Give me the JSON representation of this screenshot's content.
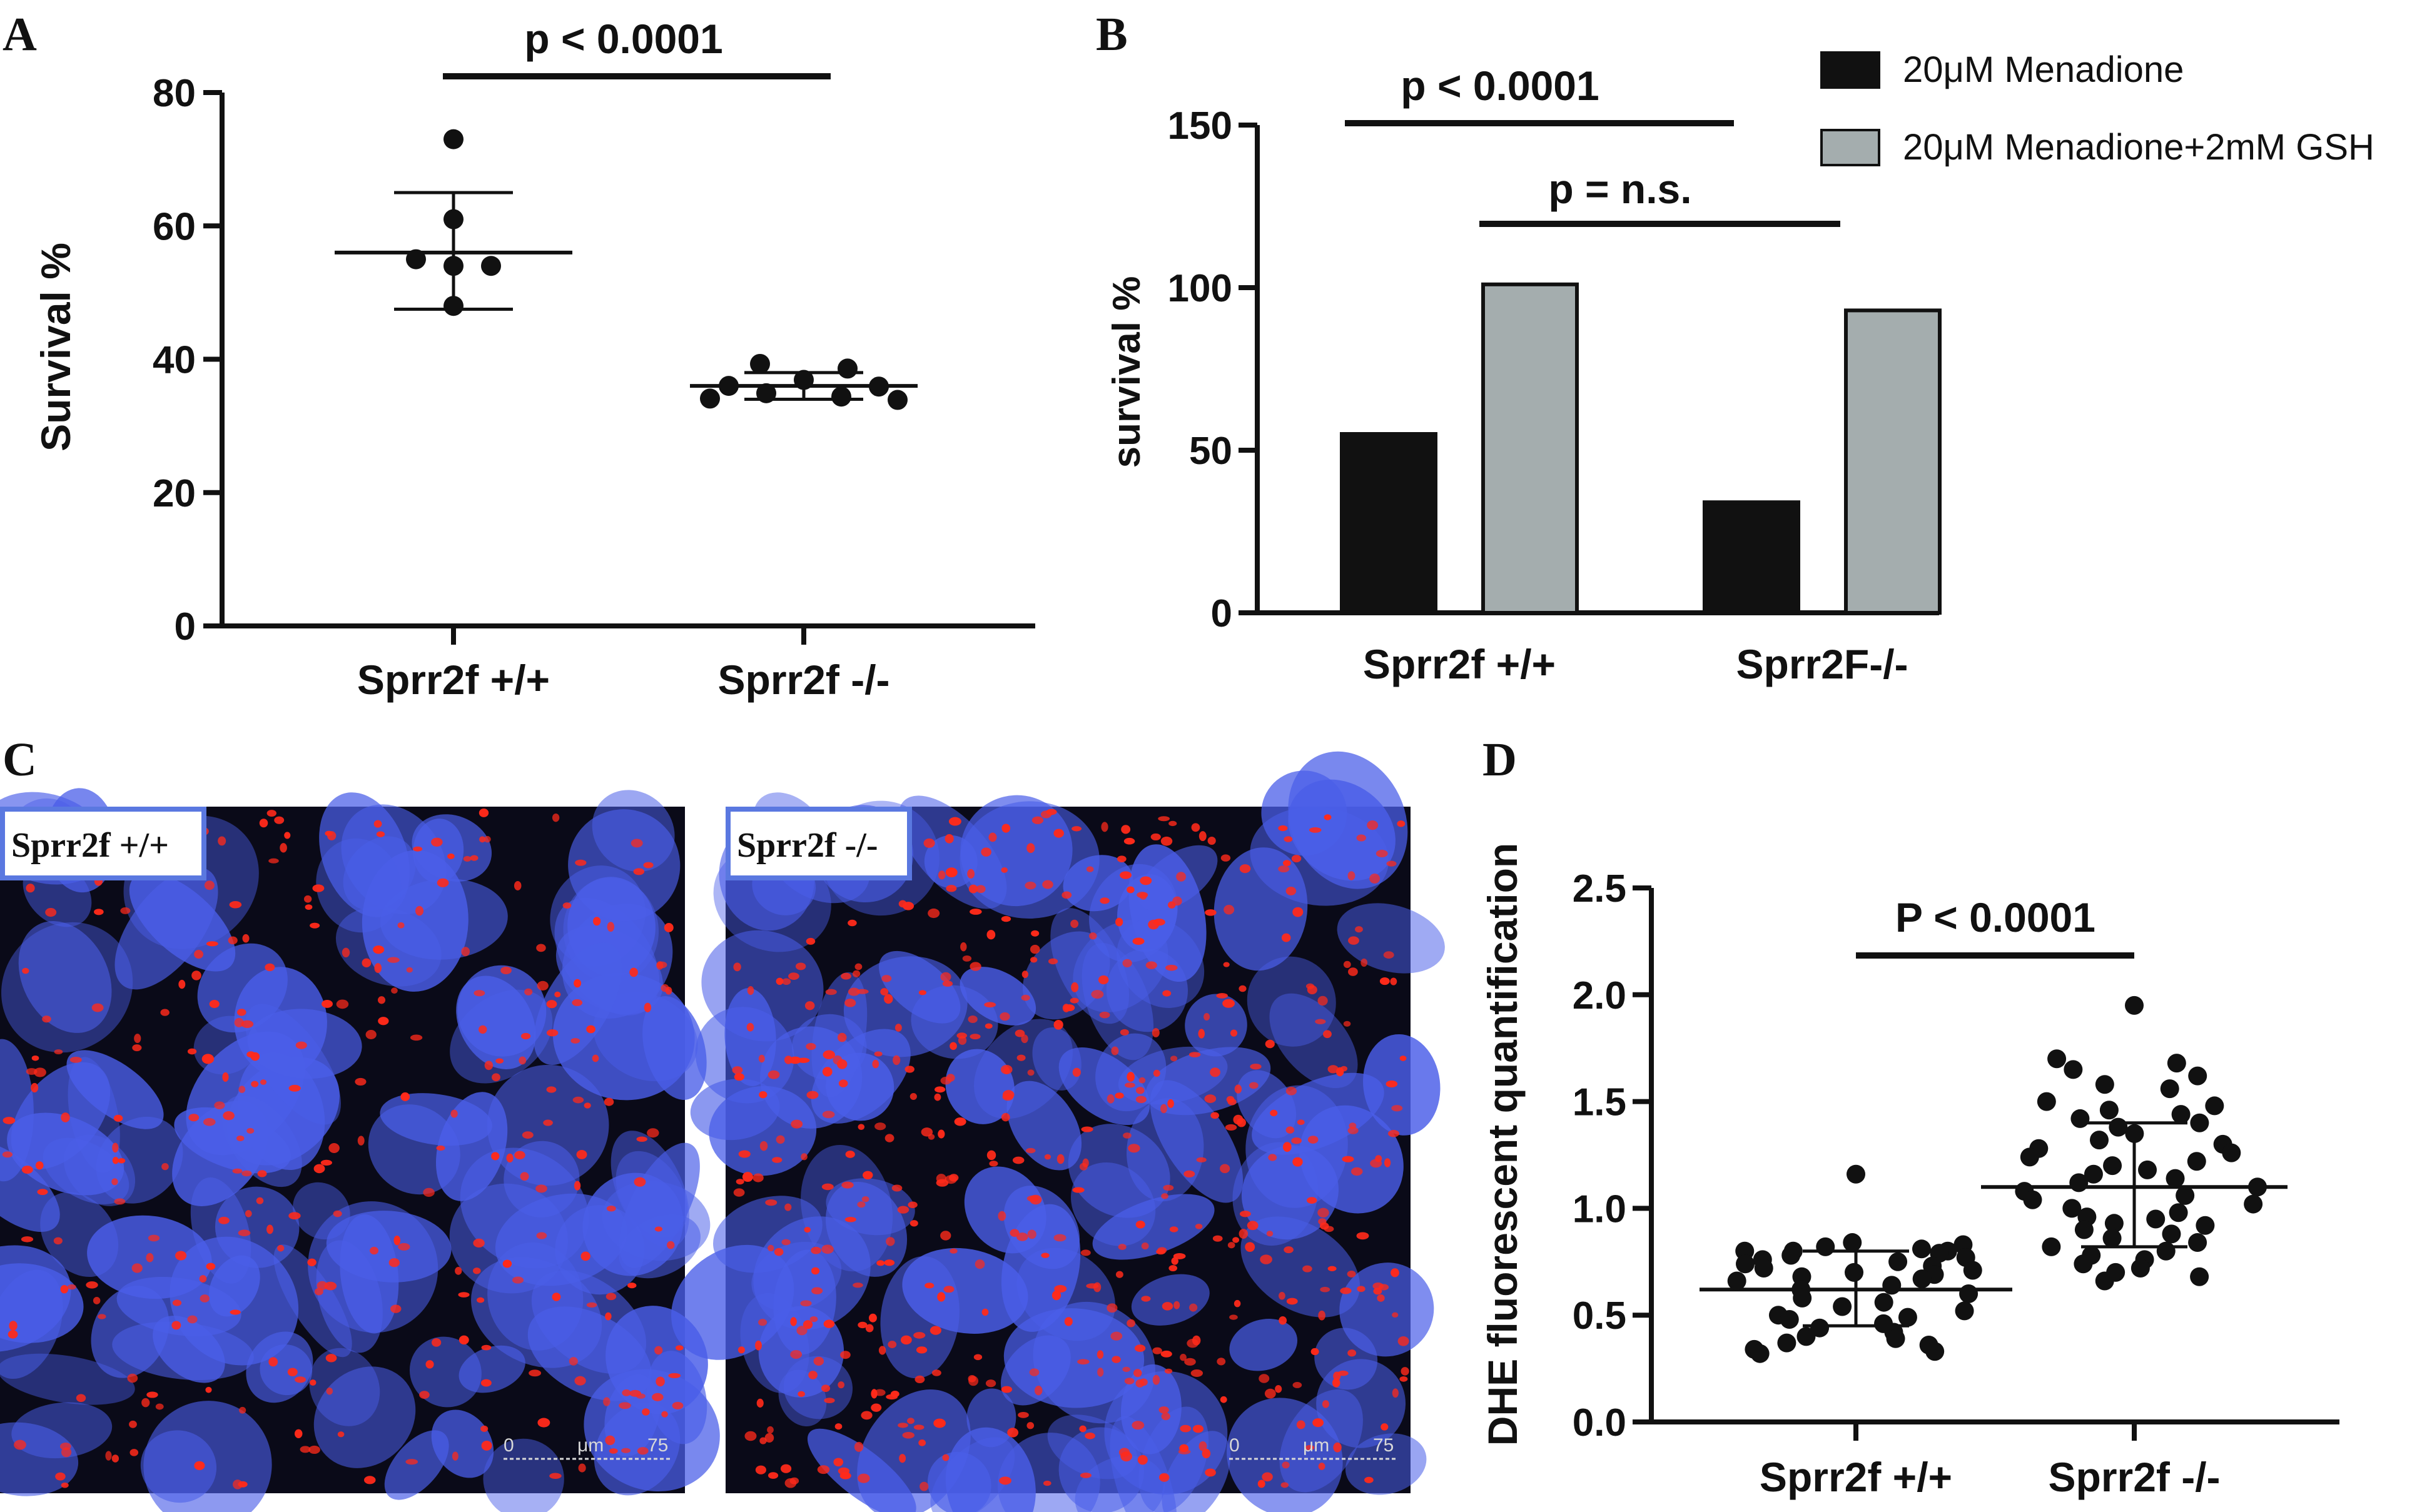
{
  "panels": {
    "A": "A",
    "B": "B",
    "C": "C",
    "D": "D"
  },
  "colors": {
    "black": "#111111",
    "grey_bar": "#a4adae",
    "micro_bg": "#0a0a18",
    "nucleus_blue": "#4a5ee8",
    "dhe_red": "#ff2a1a",
    "label_border": "#5a78e0"
  },
  "chart_data": [
    {
      "panel": "A",
      "type": "scatter",
      "ylabel": "Survival %",
      "ylim": [
        0,
        80
      ],
      "yticks": [
        0,
        20,
        40,
        60,
        80
      ],
      "categories": [
        "Sprr2f +/+",
        "Sprr2f -/-"
      ],
      "groups": [
        {
          "name": "Sprr2f +/+",
          "points": [
            73,
            61,
            55,
            54,
            54,
            48
          ],
          "mean": 56,
          "sd_upper": 65,
          "sd_lower": 47.5
        },
        {
          "name": "Sprr2f -/-",
          "points": [
            39.3,
            38.6,
            36.9,
            36,
            35.9,
            34.9,
            34.4,
            34.1,
            33.9
          ],
          "mean": 36,
          "sd_upper": 38,
          "sd_lower": 34
        }
      ],
      "significance": [
        {
          "label": "p < 0.0001",
          "from": "Sprr2f +/+",
          "to": "Sprr2f -/-"
        }
      ],
      "grid": false
    },
    {
      "panel": "B",
      "type": "bar",
      "ylabel": "survival %",
      "ylim": [
        0,
        150
      ],
      "yticks": [
        0,
        50,
        100,
        150
      ],
      "categories": [
        "Sprr2f +/+",
        "Sprr2F-/-"
      ],
      "series": [
        {
          "name": "20μM Menadione",
          "values": [
            55,
            34
          ],
          "color": "#111111"
        },
        {
          "name": "20μM Menadione+2mM GSH",
          "values": [
            101,
            93
          ],
          "color": "#a4adae"
        }
      ],
      "significance": [
        {
          "label": "p < 0.0001"
        },
        {
          "label": "p = n.s."
        }
      ],
      "legend": "top-right",
      "grid": false
    },
    {
      "panel": "D",
      "type": "scatter",
      "ylabel": "DHE  fluorescent quantification",
      "ylim": [
        0,
        2.5
      ],
      "yticks": [
        "0.0",
        "0.5",
        "1.0",
        "1.5",
        "2.0",
        "2.5"
      ],
      "categories": [
        "Sprr2f +/+",
        "Sprr2f -/-"
      ],
      "groups": [
        {
          "name": "Sprr2f +/+",
          "mean": 0.62,
          "sd_upper": 0.8,
          "sd_lower": 0.45,
          "points": [
            1.16,
            0.84,
            0.83,
            0.82,
            0.81,
            0.8,
            0.8,
            0.8,
            0.79,
            0.78,
            0.77,
            0.76,
            0.75,
            0.74,
            0.73,
            0.72,
            0.71,
            0.7,
            0.69,
            0.68,
            0.67,
            0.66,
            0.64,
            0.62,
            0.6,
            0.58,
            0.56,
            0.54,
            0.52,
            0.5,
            0.49,
            0.48,
            0.46,
            0.44,
            0.42,
            0.4,
            0.39,
            0.37,
            0.36,
            0.34,
            0.33,
            0.32
          ]
        },
        {
          "name": "Sprr2f -/-",
          "mean": 1.1,
          "sd_upper": 1.4,
          "sd_lower": 0.82,
          "points": [
            1.95,
            1.7,
            1.68,
            1.65,
            1.62,
            1.58,
            1.56,
            1.5,
            1.48,
            1.46,
            1.44,
            1.42,
            1.4,
            1.38,
            1.35,
            1.32,
            1.3,
            1.28,
            1.26,
            1.24,
            1.22,
            1.2,
            1.18,
            1.16,
            1.14,
            1.12,
            1.1,
            1.08,
            1.06,
            1.04,
            1.02,
            1.0,
            0.98,
            0.96,
            0.95,
            0.93,
            0.92,
            0.9,
            0.88,
            0.86,
            0.84,
            0.82,
            0.8,
            0.78,
            0.76,
            0.74,
            0.72,
            0.7,
            0.68,
            0.66
          ]
        }
      ],
      "significance": [
        {
          "label": "P < 0.0001"
        }
      ],
      "grid": false
    }
  ],
  "micrographs": [
    {
      "label": "Sprr2f +/+",
      "scale": {
        "zero": "0",
        "unit": "μm",
        "max": "75"
      },
      "red_density": 0.55
    },
    {
      "label": "Sprr2f -/-",
      "scale": {
        "zero": "0",
        "unit": "μm",
        "max": "75"
      },
      "red_density": 1.0
    }
  ]
}
